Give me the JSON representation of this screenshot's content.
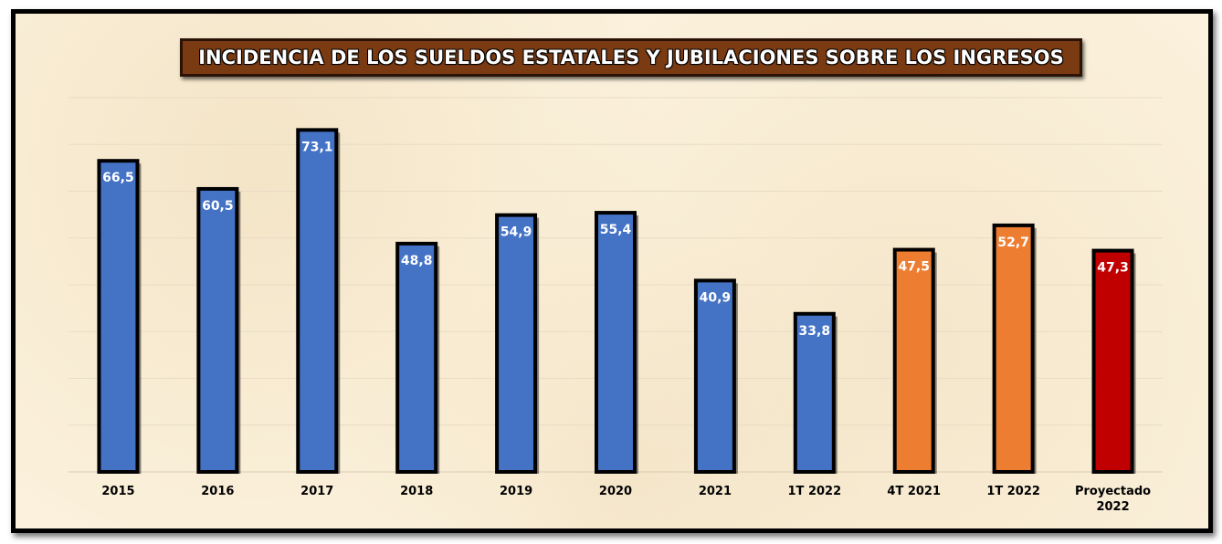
{
  "chart_data": {
    "type": "bar",
    "title": "INCIDENCIA DE LOS SUELDOS ESTATALES Y JUBILACIONES SOBRE LOS INGRESOS",
    "xlabel": "",
    "ylabel": "",
    "ylim": [
      0,
      80
    ],
    "grid": true,
    "legend": "none",
    "categories": [
      "2015",
      "2016",
      "2017",
      "2018",
      "2019",
      "2020",
      "2021",
      "1T 2022",
      "4T 2021",
      "1T 2022",
      "Proyectado 2022"
    ],
    "category_lines": [
      [
        "2015"
      ],
      [
        "2016"
      ],
      [
        "2017"
      ],
      [
        "2018"
      ],
      [
        "2019"
      ],
      [
        "2020"
      ],
      [
        "2021"
      ],
      [
        "1T 2022"
      ],
      [
        "4T 2021"
      ],
      [
        "1T 2022"
      ],
      [
        "Proyectado",
        "2022"
      ]
    ],
    "values": [
      66.5,
      60.5,
      73.1,
      48.8,
      54.9,
      55.4,
      40.9,
      33.8,
      47.5,
      52.7,
      47.3
    ],
    "value_labels": [
      "66,5",
      "60,5",
      "73,1",
      "48,8",
      "54,9",
      "55,4",
      "40,9",
      "33,8",
      "47,5",
      "52,7",
      "47,3"
    ],
    "bar_colors": [
      "#4472c4",
      "#4472c4",
      "#4472c4",
      "#4472c4",
      "#4472c4",
      "#4472c4",
      "#4472c4",
      "#4472c4",
      "#ed7d31",
      "#ed7d31",
      "#c00000"
    ]
  },
  "colors": {
    "background": "#fbf1dc",
    "title_background": "#7a3a12",
    "grid": "#e8dcc4"
  }
}
